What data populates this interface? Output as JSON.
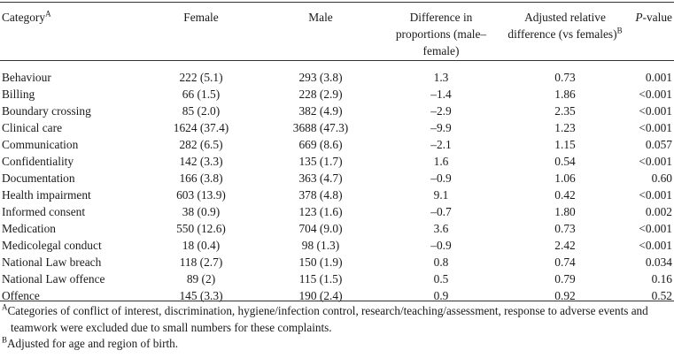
{
  "table": {
    "headers": {
      "category": "Category",
      "category_sup": "A",
      "female": "Female",
      "male": "Male",
      "difference": "Difference in proportions (male–female)",
      "adjusted": "Adjusted relative difference (vs females)",
      "adjusted_sup": "B",
      "pvalue_italic": "P",
      "pvalue_rest": "-value"
    },
    "rows": [
      {
        "category": "Behaviour",
        "female": "222 (5.1)",
        "male": "293 (3.8)",
        "difference": "1.3",
        "adjusted": "0.73",
        "p": "0.001"
      },
      {
        "category": "Billing",
        "female": "66 (1.5)",
        "male": "228 (2.9)",
        "difference": "–1.4",
        "adjusted": "1.86",
        "p": "<0.001"
      },
      {
        "category": "Boundary crossing",
        "female": "85 (2.0)",
        "male": "382 (4.9)",
        "difference": "–2.9",
        "adjusted": "2.35",
        "p": "<0.001"
      },
      {
        "category": "Clinical care",
        "female": "1624 (37.4)",
        "male": "3688 (47.3)",
        "difference": "–9.9",
        "adjusted": "1.23",
        "p": "<0.001"
      },
      {
        "category": "Communication",
        "female": "282 (6.5)",
        "male": "669 (8.6)",
        "difference": "–2.1",
        "adjusted": "1.15",
        "p": "0.057"
      },
      {
        "category": "Confidentiality",
        "female": "142 (3.3)",
        "male": "135 (1.7)",
        "difference": "1.6",
        "adjusted": "0.54",
        "p": "<0.001"
      },
      {
        "category": "Documentation",
        "female": "166 (3.8)",
        "male": "363 (4.7)",
        "difference": "–0.9",
        "adjusted": "1.06",
        "p": "0.60"
      },
      {
        "category": "Health impairment",
        "female": "603 (13.9)",
        "male": "378 (4.8)",
        "difference": "9.1",
        "adjusted": "0.42",
        "p": "<0.001"
      },
      {
        "category": "Informed consent",
        "female": "38 (0.9)",
        "male": "123 (1.6)",
        "difference": "–0.7",
        "adjusted": "1.80",
        "p": "0.002"
      },
      {
        "category": "Medication",
        "female": "550 (12.6)",
        "male": "704 (9.0)",
        "difference": "3.6",
        "adjusted": "0.73",
        "p": "<0.001"
      },
      {
        "category": "Medicolegal conduct",
        "female": "18 (0.4)",
        "male": "98 (1.3)",
        "difference": "–0.9",
        "adjusted": "2.42",
        "p": "<0.001"
      },
      {
        "category": "National Law breach",
        "female": "118 (2.7)",
        "male": "150 (1.9)",
        "difference": "0.8",
        "adjusted": "0.74",
        "p": "0.034"
      },
      {
        "category": "National Law offence",
        "female": "89 (2)",
        "male": "115 (1.5)",
        "difference": "0.5",
        "adjusted": "0.79",
        "p": "0.16"
      },
      {
        "category": "Offence",
        "female": "145 (3.3)",
        "male": "190 (2.4)",
        "difference": "0.9",
        "adjusted": "0.92",
        "p": "0.52"
      }
    ]
  },
  "footnotes": {
    "a_marker": "A",
    "a_text": "Categories of conflict of interest, discrimination, hygiene/infection control, research/teaching/assessment, response to adverse events and teamwork were excluded due to small numbers for these complaints.",
    "b_marker": "B",
    "b_text": "Adjusted for age and region of birth."
  }
}
